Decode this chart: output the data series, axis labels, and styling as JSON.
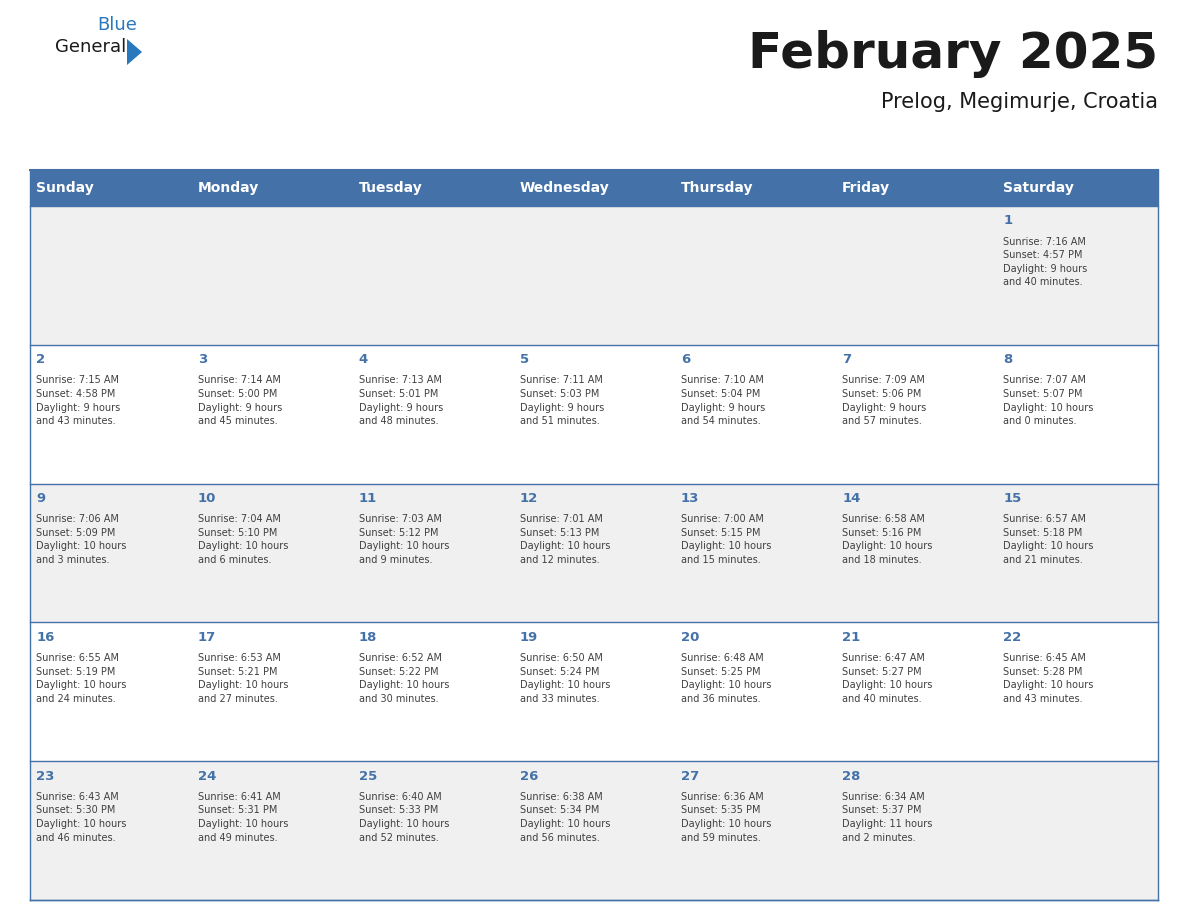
{
  "title": "February 2025",
  "subtitle": "Prelog, Megimurje, Croatia",
  "days_of_week": [
    "Sunday",
    "Monday",
    "Tuesday",
    "Wednesday",
    "Thursday",
    "Friday",
    "Saturday"
  ],
  "header_bg": "#4472A8",
  "header_text": "#FFFFFF",
  "cell_bg_odd": "#F0F0F0",
  "cell_bg_even": "#FFFFFF",
  "border_color": "#4472A8",
  "day_num_color": "#4472A8",
  "text_color": "#404040",
  "title_color": "#1a1a1a",
  "subtitle_color": "#1a1a1a",
  "logo_general_color": "#1a1a1a",
  "logo_blue_color": "#2878BE",
  "logo_triangle_color": "#2878BE",
  "calendar_data": [
    [
      {
        "day": null,
        "info": null
      },
      {
        "day": null,
        "info": null
      },
      {
        "day": null,
        "info": null
      },
      {
        "day": null,
        "info": null
      },
      {
        "day": null,
        "info": null
      },
      {
        "day": null,
        "info": null
      },
      {
        "day": 1,
        "info": "Sunrise: 7:16 AM\nSunset: 4:57 PM\nDaylight: 9 hours\nand 40 minutes."
      }
    ],
    [
      {
        "day": 2,
        "info": "Sunrise: 7:15 AM\nSunset: 4:58 PM\nDaylight: 9 hours\nand 43 minutes."
      },
      {
        "day": 3,
        "info": "Sunrise: 7:14 AM\nSunset: 5:00 PM\nDaylight: 9 hours\nand 45 minutes."
      },
      {
        "day": 4,
        "info": "Sunrise: 7:13 AM\nSunset: 5:01 PM\nDaylight: 9 hours\nand 48 minutes."
      },
      {
        "day": 5,
        "info": "Sunrise: 7:11 AM\nSunset: 5:03 PM\nDaylight: 9 hours\nand 51 minutes."
      },
      {
        "day": 6,
        "info": "Sunrise: 7:10 AM\nSunset: 5:04 PM\nDaylight: 9 hours\nand 54 minutes."
      },
      {
        "day": 7,
        "info": "Sunrise: 7:09 AM\nSunset: 5:06 PM\nDaylight: 9 hours\nand 57 minutes."
      },
      {
        "day": 8,
        "info": "Sunrise: 7:07 AM\nSunset: 5:07 PM\nDaylight: 10 hours\nand 0 minutes."
      }
    ],
    [
      {
        "day": 9,
        "info": "Sunrise: 7:06 AM\nSunset: 5:09 PM\nDaylight: 10 hours\nand 3 minutes."
      },
      {
        "day": 10,
        "info": "Sunrise: 7:04 AM\nSunset: 5:10 PM\nDaylight: 10 hours\nand 6 minutes."
      },
      {
        "day": 11,
        "info": "Sunrise: 7:03 AM\nSunset: 5:12 PM\nDaylight: 10 hours\nand 9 minutes."
      },
      {
        "day": 12,
        "info": "Sunrise: 7:01 AM\nSunset: 5:13 PM\nDaylight: 10 hours\nand 12 minutes."
      },
      {
        "day": 13,
        "info": "Sunrise: 7:00 AM\nSunset: 5:15 PM\nDaylight: 10 hours\nand 15 minutes."
      },
      {
        "day": 14,
        "info": "Sunrise: 6:58 AM\nSunset: 5:16 PM\nDaylight: 10 hours\nand 18 minutes."
      },
      {
        "day": 15,
        "info": "Sunrise: 6:57 AM\nSunset: 5:18 PM\nDaylight: 10 hours\nand 21 minutes."
      }
    ],
    [
      {
        "day": 16,
        "info": "Sunrise: 6:55 AM\nSunset: 5:19 PM\nDaylight: 10 hours\nand 24 minutes."
      },
      {
        "day": 17,
        "info": "Sunrise: 6:53 AM\nSunset: 5:21 PM\nDaylight: 10 hours\nand 27 minutes."
      },
      {
        "day": 18,
        "info": "Sunrise: 6:52 AM\nSunset: 5:22 PM\nDaylight: 10 hours\nand 30 minutes."
      },
      {
        "day": 19,
        "info": "Sunrise: 6:50 AM\nSunset: 5:24 PM\nDaylight: 10 hours\nand 33 minutes."
      },
      {
        "day": 20,
        "info": "Sunrise: 6:48 AM\nSunset: 5:25 PM\nDaylight: 10 hours\nand 36 minutes."
      },
      {
        "day": 21,
        "info": "Sunrise: 6:47 AM\nSunset: 5:27 PM\nDaylight: 10 hours\nand 40 minutes."
      },
      {
        "day": 22,
        "info": "Sunrise: 6:45 AM\nSunset: 5:28 PM\nDaylight: 10 hours\nand 43 minutes."
      }
    ],
    [
      {
        "day": 23,
        "info": "Sunrise: 6:43 AM\nSunset: 5:30 PM\nDaylight: 10 hours\nand 46 minutes."
      },
      {
        "day": 24,
        "info": "Sunrise: 6:41 AM\nSunset: 5:31 PM\nDaylight: 10 hours\nand 49 minutes."
      },
      {
        "day": 25,
        "info": "Sunrise: 6:40 AM\nSunset: 5:33 PM\nDaylight: 10 hours\nand 52 minutes."
      },
      {
        "day": 26,
        "info": "Sunrise: 6:38 AM\nSunset: 5:34 PM\nDaylight: 10 hours\nand 56 minutes."
      },
      {
        "day": 27,
        "info": "Sunrise: 6:36 AM\nSunset: 5:35 PM\nDaylight: 10 hours\nand 59 minutes."
      },
      {
        "day": 28,
        "info": "Sunrise: 6:34 AM\nSunset: 5:37 PM\nDaylight: 11 hours\nand 2 minutes."
      },
      {
        "day": null,
        "info": null
      }
    ]
  ]
}
